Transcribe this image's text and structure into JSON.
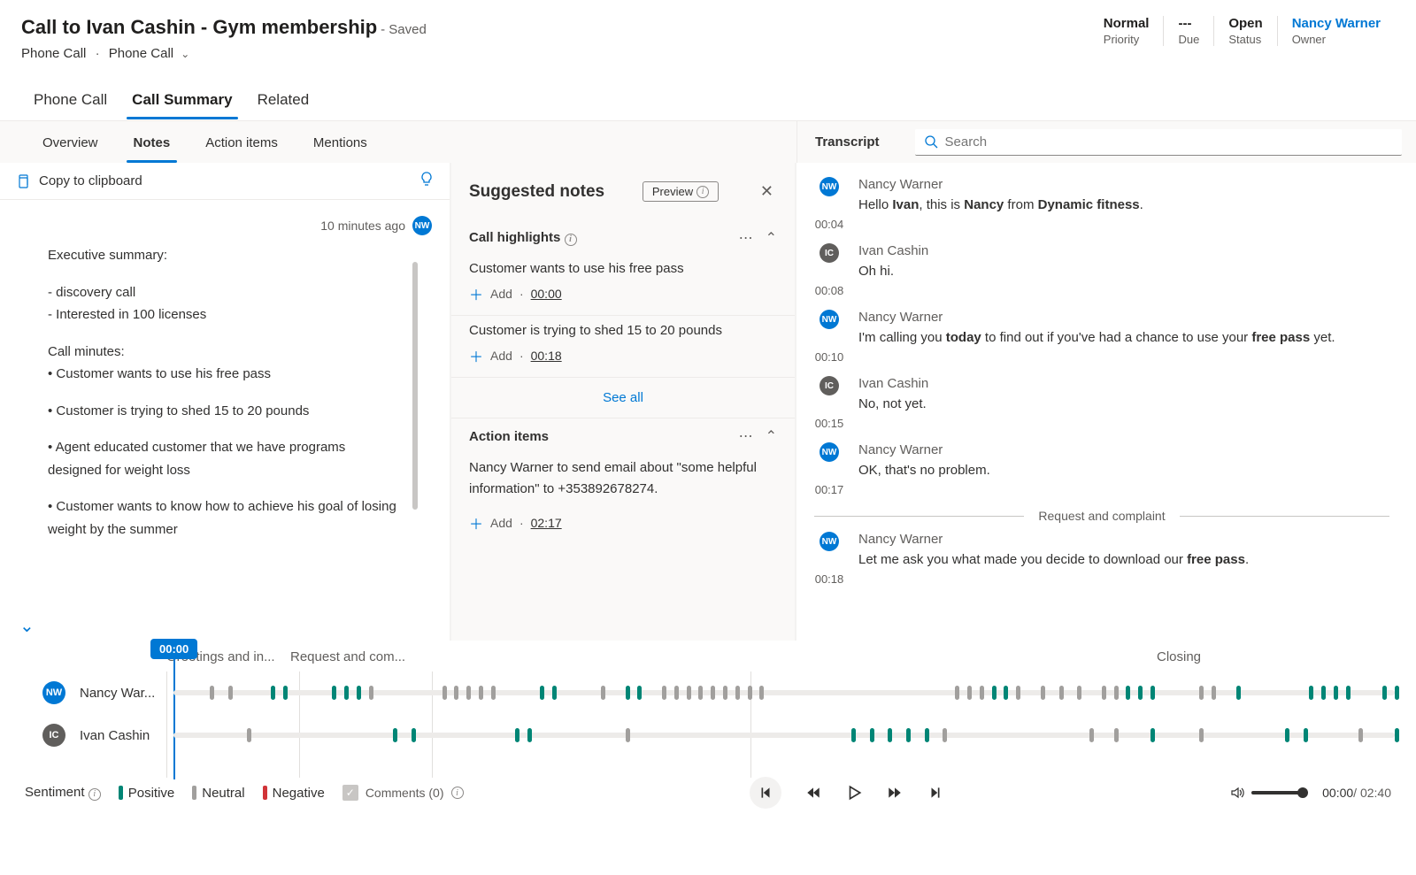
{
  "header": {
    "title": "Call to Ivan Cashin - Gym membership",
    "saved": "- Saved",
    "subtitle1": "Phone Call",
    "subtitle2": "Phone Call"
  },
  "meta": {
    "priority": {
      "val": "Normal",
      "label": "Priority"
    },
    "due": {
      "val": "---",
      "label": "Due"
    },
    "status": {
      "val": "Open",
      "label": "Status"
    },
    "owner": {
      "val": "Nancy Warner",
      "label": "Owner"
    }
  },
  "tabs_main": {
    "phone": "Phone Call",
    "summary": "Call Summary",
    "related": "Related"
  },
  "sub_tabs": {
    "overview": "Overview",
    "notes": "Notes",
    "actions": "Action items",
    "mentions": "Mentions"
  },
  "transcript_label": "Transcript",
  "search_placeholder": "Search",
  "copy_label": "Copy to clipboard",
  "notes": {
    "ago": "10 minutes ago",
    "exec_head": "Executive summary:",
    "bullets1": "- discovery call",
    "bullets2": "- Interested in 100 licenses",
    "minutes_head": "Call minutes:",
    "m1": "• Customer wants to use his free pass",
    "m2": "• Customer is trying to shed 15 to 20 pounds",
    "m3": "• Agent educated customer that we have programs designed for weight loss",
    "m4": "• Customer wants to know how to achieve his goal of losing weight by the summer"
  },
  "suggest": {
    "title": "Suggested notes",
    "preview": "Preview",
    "highlights_title": "Call highlights",
    "h1": {
      "text": "Customer wants to use his free pass",
      "time": "00:00"
    },
    "h2": {
      "text": "Customer is trying to shed 15 to 20 pounds",
      "time": "00:18"
    },
    "see_all": "See all",
    "actions_title": "Action items",
    "a1": {
      "text": "Nancy Warner to send email about \"some helpful information\" to +353892678274.",
      "time": "02:17"
    },
    "add": "Add"
  },
  "transcript": {
    "t1": {
      "name": "Nancy Warner",
      "time": "00:04"
    },
    "t2": {
      "name": "Ivan Cashin",
      "time": "00:08",
      "text": "Oh hi."
    },
    "t3": {
      "name": "Nancy Warner",
      "time": "00:10"
    },
    "t4": {
      "name": "Ivan Cashin",
      "time": "00:15",
      "text": "No, not yet."
    },
    "t5": {
      "name": "Nancy Warner",
      "time": "00:17",
      "text": "OK, that's no problem."
    },
    "divider": "Request and complaint",
    "t6": {
      "name": "Nancy Warner",
      "time": "00:18"
    }
  },
  "timeline": {
    "marker": "00:00",
    "seg1": "Greetings and in...",
    "seg2": "Request and com...",
    "seg3": "Closing",
    "speaker1": "Nancy War...",
    "speaker2": "Ivan Cashin"
  },
  "footer": {
    "sentiment": "Sentiment",
    "positive": "Positive",
    "neutral": "Neutral",
    "negative": "Negative",
    "comments": "Comments (0)",
    "time_cur": "00:00",
    "time_tot": "/ 02:40"
  }
}
